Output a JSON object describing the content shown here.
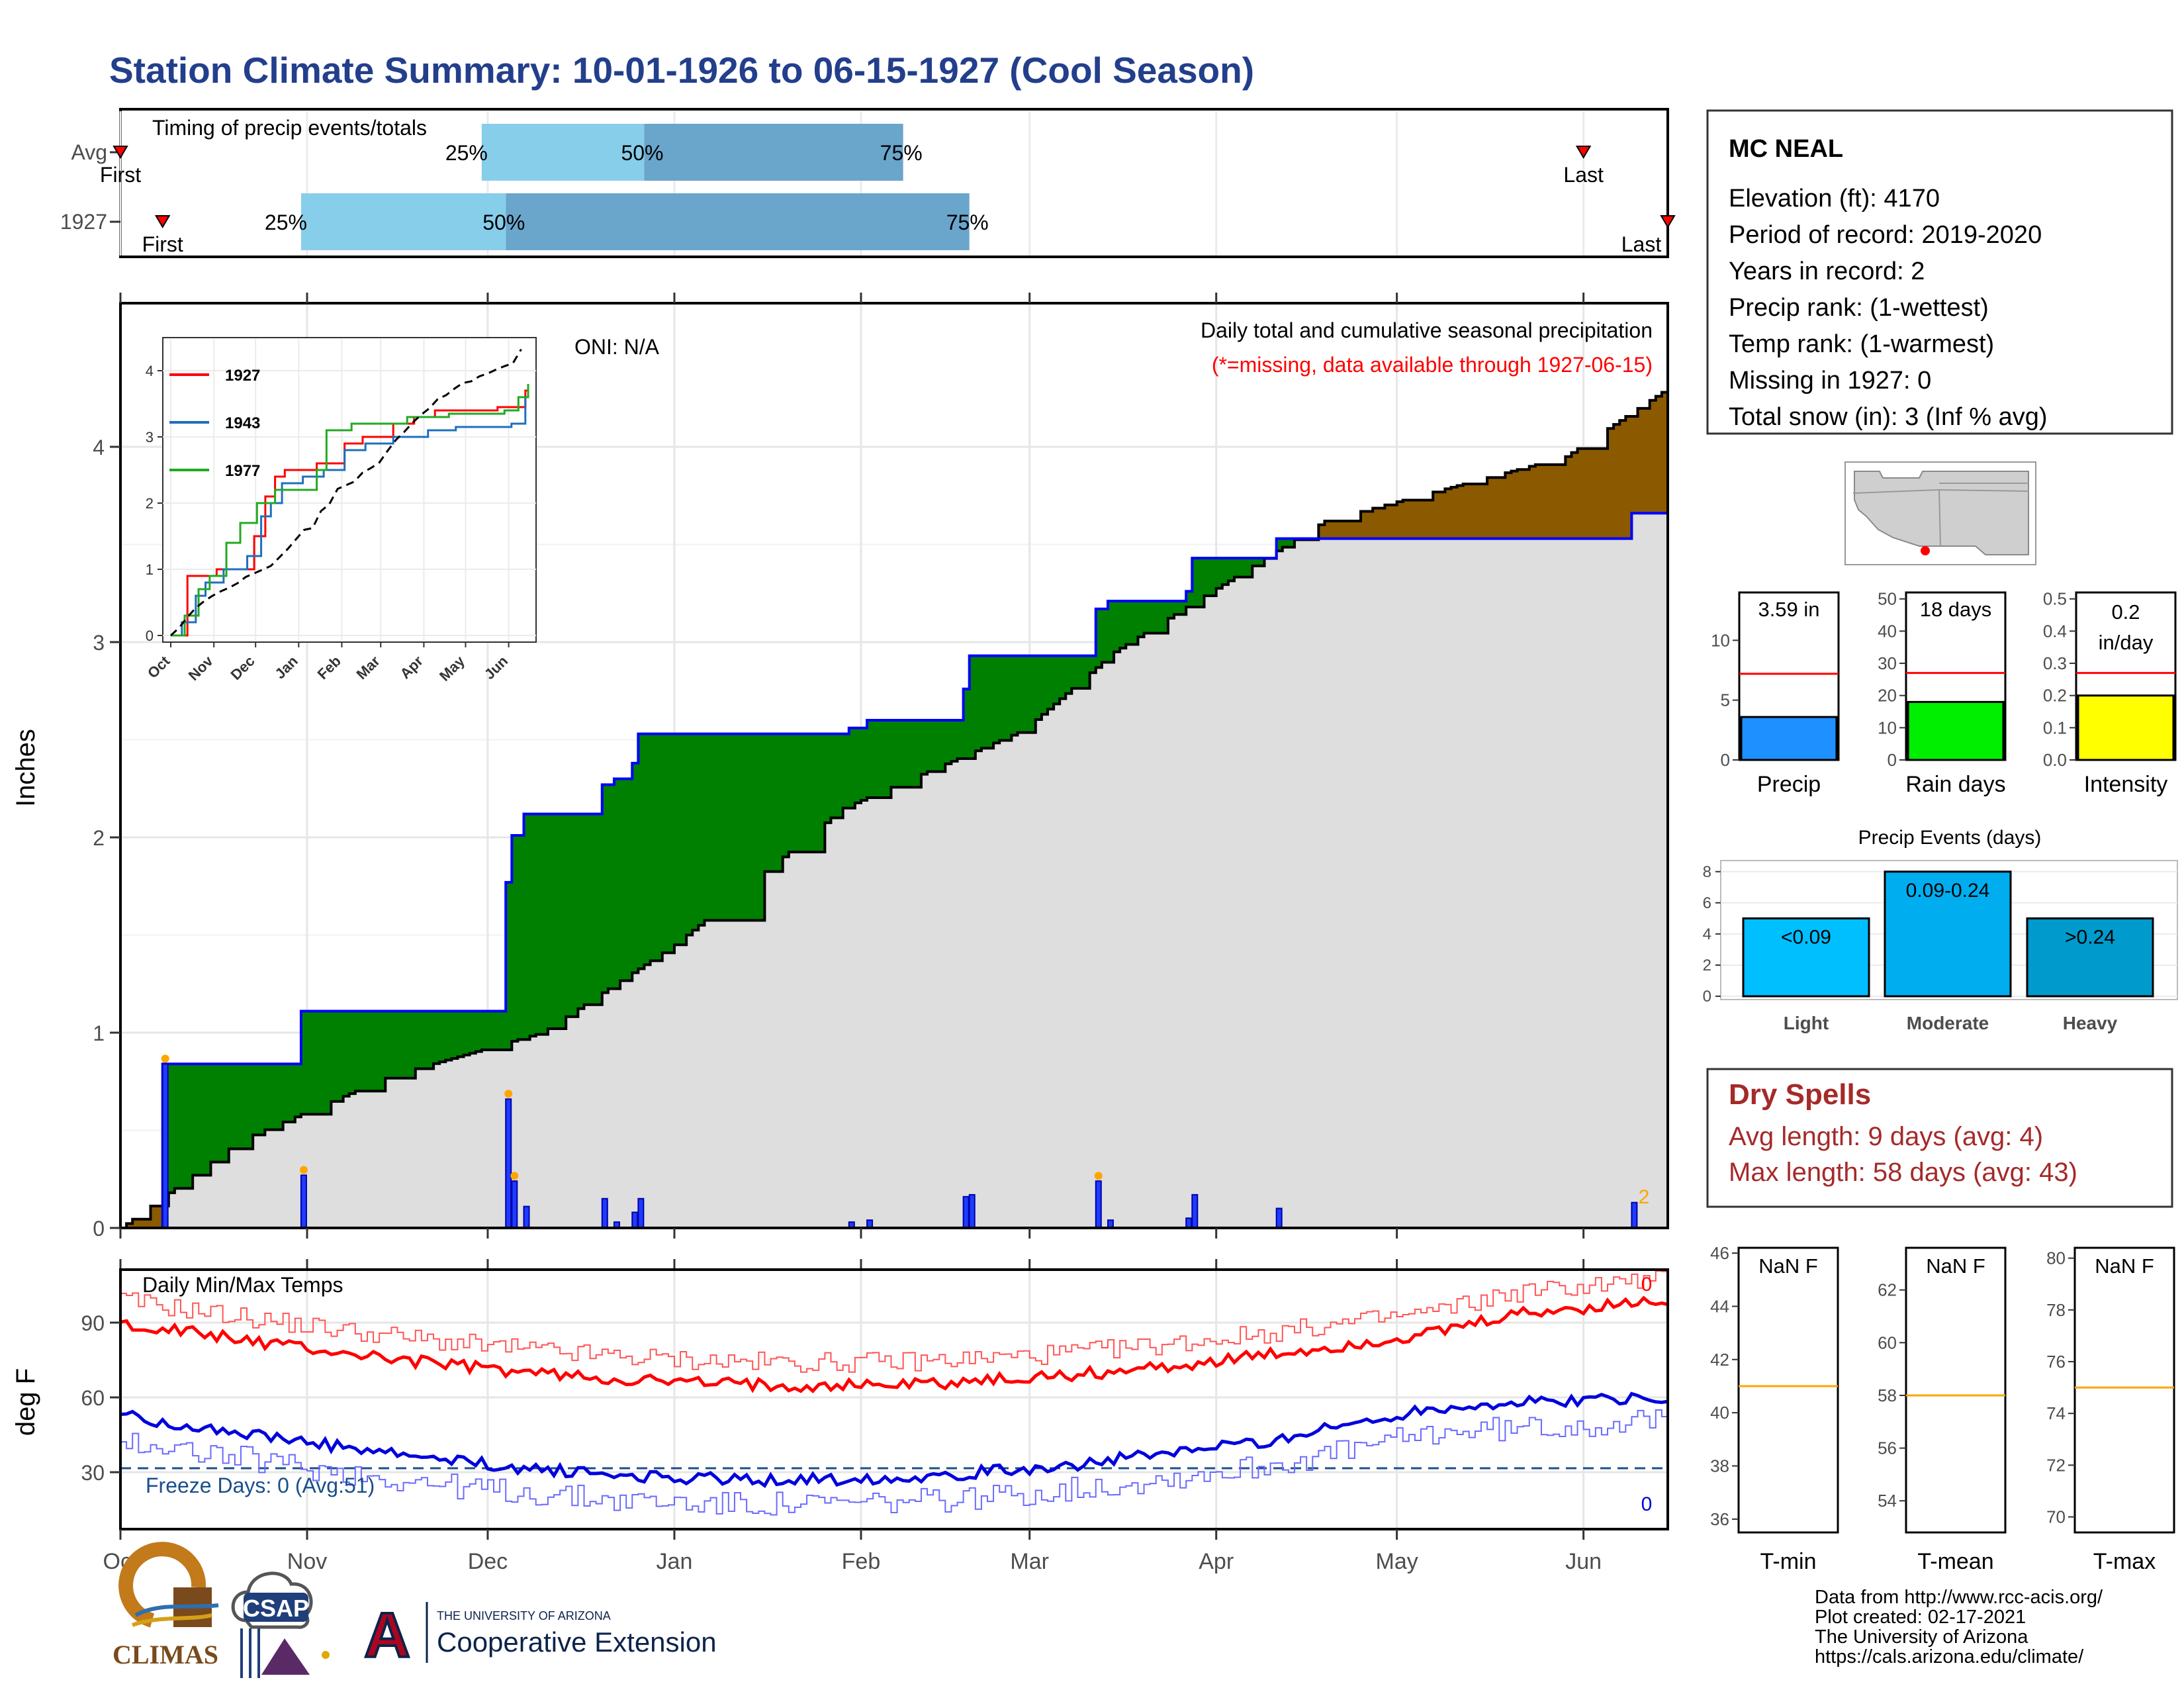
{
  "title": "Station Climate Summary: 10-01-1926 to 06-15-1927 (Cool Season)",
  "colors": {
    "title": "#233f8c",
    "q1": "#87ceeb",
    "q2": "#6aa5cc",
    "brown": "#8b5a00",
    "green": "#008000",
    "blue": "#0000ff",
    "red": "#ff0000",
    "gray": "#dedede",
    "dry": "#a52a2a"
  },
  "timing": {
    "label": "Timing of precip events/totals",
    "rows": [
      {
        "name": "Avg",
        "first": "First",
        "last": "Last",
        "q25": "25%",
        "q50": "50%",
        "q75": "75%",
        "first_date": "1926-10-01",
        "last_date": "1927-06-01",
        "q25_date": "1926-11-30",
        "q50_date": "1926-12-27",
        "q75_date": "1927-02-08"
      },
      {
        "name": "1927",
        "first": "First",
        "last": "Last",
        "q25": "25%",
        "q50": "50%",
        "q75": "75%",
        "first_date": "1926-10-08",
        "last_date": "1927-06-15",
        "q25_date": "1926-10-31",
        "q50_date": "1926-12-04",
        "q75_date": "1927-02-19"
      }
    ]
  },
  "main": {
    "ylabel": "Inches",
    "oni": "ONI: N/A",
    "note1": "Daily total and cumulative seasonal precipitation",
    "note2": "(*=missing, data available through 1927-06-15)",
    "yticks": [
      "0",
      "1",
      "2",
      "3",
      "4"
    ],
    "corner_label": "2"
  },
  "months": [
    "Oct",
    "Nov",
    "Dec",
    "Jan",
    "Feb",
    "Mar",
    "Apr",
    "May",
    "Jun"
  ],
  "inset": {
    "legend": [
      "1927",
      "1943",
      "1977"
    ],
    "legend_colors": [
      "#ff0000",
      "#1f6fbf",
      "#22aa22"
    ],
    "yticks": [
      "0",
      "1",
      "2",
      "3",
      "4"
    ],
    "months": [
      "Oct",
      "Nov",
      "Dec",
      "Jan",
      "Feb",
      "Mar",
      "Apr",
      "May",
      "Jun"
    ]
  },
  "temps": {
    "label": "Daily Min/Max Temps",
    "ylabel": "deg F",
    "yticks": [
      "30",
      "60",
      "90"
    ],
    "freeze": "Freeze Days: 0 (Avg:51)",
    "max_count": "0",
    "min_count": "0"
  },
  "station": {
    "name": "MC NEAL",
    "lines": [
      "Elevation (ft): 4170",
      "Period of record: 2019-2020",
      "Years in record: 2",
      "Precip rank:  (1-wettest)",
      "Temp rank:  (1-warmest)",
      "Missing in 1927: 0",
      "Total snow (in): 3 (Inf % avg)"
    ]
  },
  "bars": [
    {
      "label": "3.59 in",
      "xlabel": "Precip",
      "ticks": [
        "0",
        "5",
        "10"
      ],
      "max": 14,
      "value": 3.59,
      "avg": 7.2,
      "color": "#1e90ff"
    },
    {
      "label": "18 days",
      "xlabel": "Rain days",
      "ticks": [
        "0",
        "10",
        "20",
        "30",
        "40",
        "50"
      ],
      "max": 52,
      "value": 18,
      "avg": 27,
      "color": "#00ee00"
    },
    {
      "label_a": "0.2",
      "label_b": "in/day",
      "xlabel": "Intensity",
      "ticks": [
        "0.0",
        "0.1",
        "0.2",
        "0.3",
        "0.4",
        "0.5"
      ],
      "max": 0.52,
      "value": 0.2,
      "avg": 0.27,
      "color": "#ffff00"
    }
  ],
  "events": {
    "title": "Precip Events (days)",
    "ticks": [
      "0",
      "2",
      "4",
      "6",
      "8"
    ],
    "max": 8.5,
    "items": [
      {
        "label": "<0.09",
        "name": "Light",
        "value": 5,
        "color": "#00bfff"
      },
      {
        "label": "0.09-0.24",
        "name": "Moderate",
        "value": 8,
        "color": "#00aeef"
      },
      {
        "label": ">0.24",
        "name": "Heavy",
        "value": 5,
        "color": "#009acd"
      }
    ]
  },
  "dry": {
    "title": "Dry Spells",
    "line1": "Avg length: 9 days (avg: 4)",
    "line2": "Max length: 58 days (avg: 43)"
  },
  "tpanels": [
    {
      "label": "NaN F",
      "xlabel": "T-min",
      "ticks": [
        "36",
        "38",
        "40",
        "42",
        "44",
        "46"
      ],
      "min": 35.5,
      "max": 46.2,
      "avg": 41
    },
    {
      "label": "NaN F",
      "xlabel": "T-mean",
      "ticks": [
        "54",
        "56",
        "58",
        "60",
        "62"
      ],
      "min": 52.8,
      "max": 63.6,
      "avg": 58
    },
    {
      "label": "NaN F",
      "xlabel": "T-max",
      "ticks": [
        "70",
        "72",
        "74",
        "76",
        "78",
        "80"
      ],
      "min": 69.4,
      "max": 80.4,
      "avg": 75
    }
  ],
  "logos": {
    "climas": "CLIMAS",
    "csap": "CSAP",
    "ua_letter": "A",
    "ua_small": "THE UNIVERSITY OF ARIZONA",
    "ua_big": "Cooperative Extension"
  },
  "credits": [
    "Data from http://www.rcc-acis.org/",
    "Plot created: 02-17-2021",
    "The University of Arizona",
    "https://cals.arizona.edu/climate/"
  ]
}
